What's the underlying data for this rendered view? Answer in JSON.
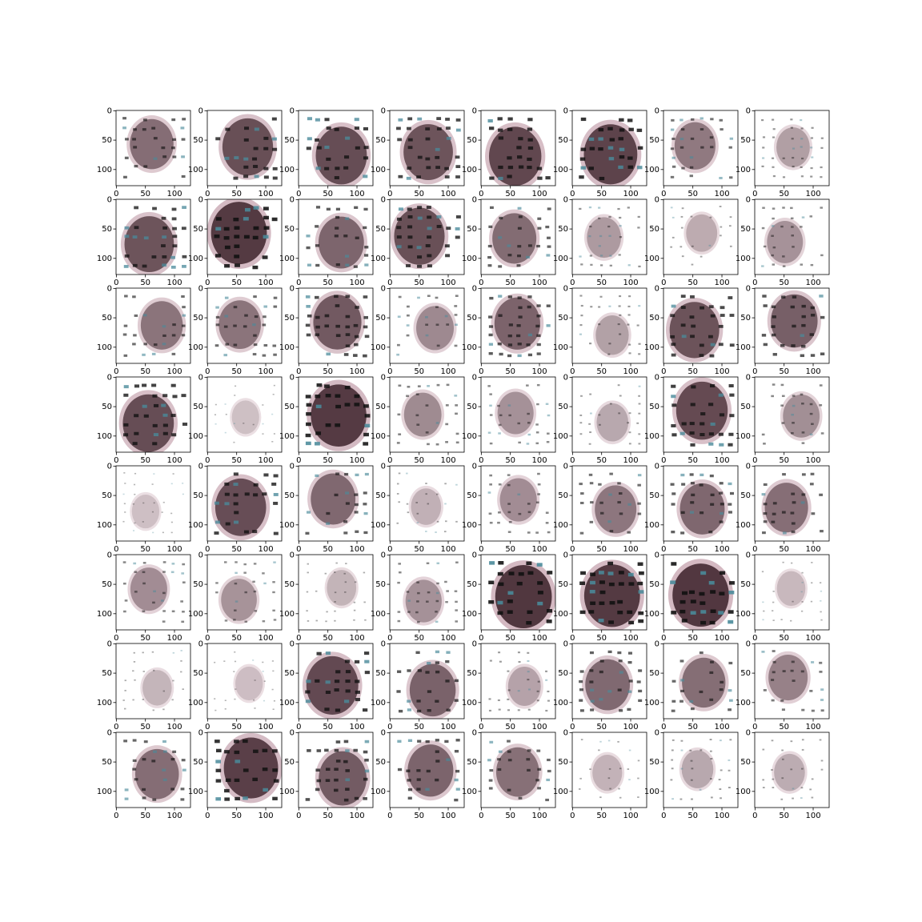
{
  "chart_data": {
    "type": "image_grid",
    "xlim": [
      -0.5,
      127.5
    ],
    "ylim": [
      127.5,
      -0.5
    ],
    "xticks": [
      0,
      50,
      100
    ],
    "yticks": [
      0,
      50,
      100
    ]
  }
}
